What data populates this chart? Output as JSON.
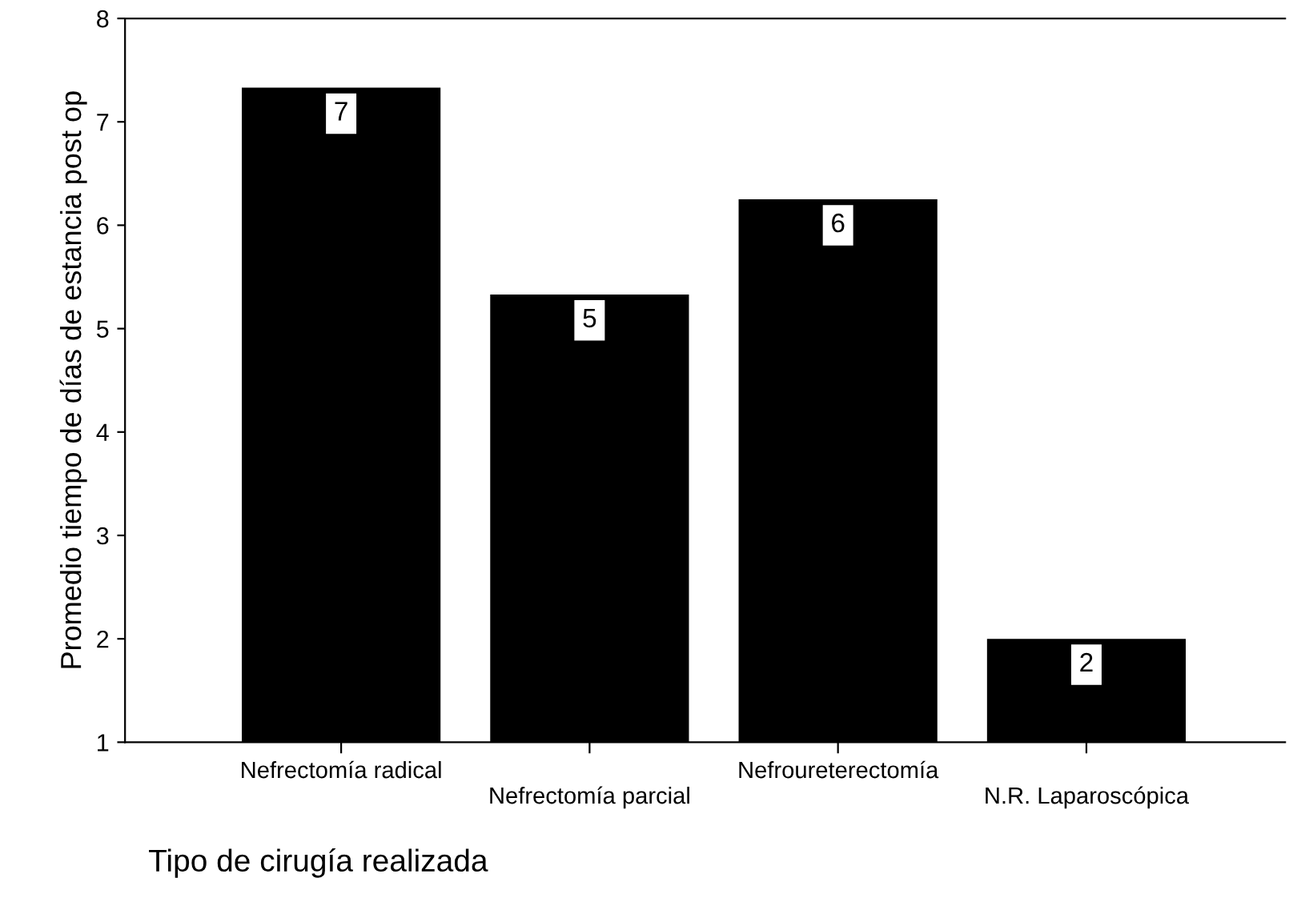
{
  "chart_data": {
    "type": "bar",
    "xlabel": "Tipo de cirugía realizada",
    "ylabel": "Promedio tiempo de días de estancia post op",
    "categories": [
      "Nefrectomía radical",
      "Nefrectomía parcial",
      "Nefroureterectomía",
      "N.R. Laparoscópica"
    ],
    "values": [
      7.33,
      5.33,
      6.25,
      2.0
    ],
    "value_labels": [
      "7",
      "5",
      "6",
      "2"
    ],
    "color": "#000000",
    "ylim": [
      1,
      8
    ],
    "yticks": [
      1,
      2,
      3,
      4,
      5,
      6,
      7,
      8
    ],
    "grid": false,
    "legend": false
  }
}
